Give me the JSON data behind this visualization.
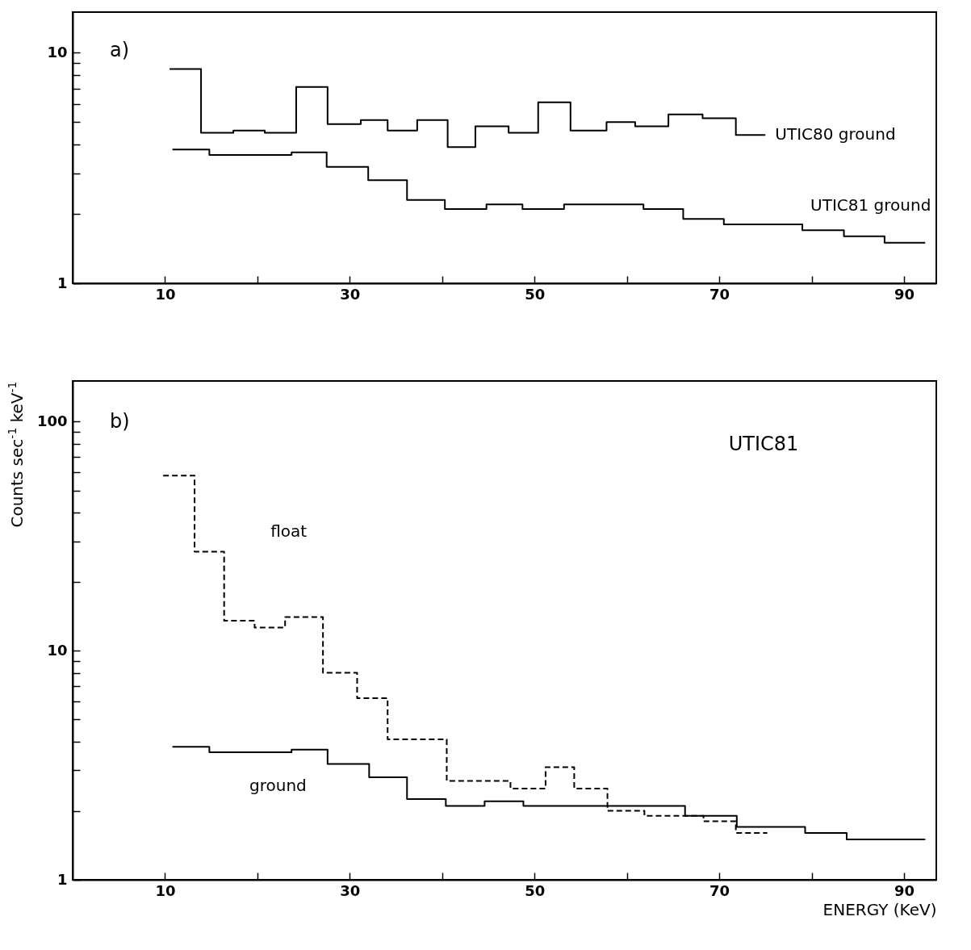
{
  "chart_data": [
    {
      "type": "step",
      "annotations": [
        "a)"
      ],
      "xlim": [
        0,
        93.5
      ],
      "ylim": [
        1,
        15
      ],
      "log": true,
      "xticks": [
        10,
        {
          "value": 20,
          "label": null
        },
        30,
        {
          "value": 40,
          "label": null
        },
        50,
        {
          "value": 60,
          "label": null
        },
        70,
        {
          "value": 80,
          "label": null
        },
        90
      ],
      "yticks": [
        1,
        {
          "value": 2,
          "label": null
        },
        {
          "value": 3,
          "label": null
        },
        {
          "value": 4,
          "label": null
        },
        {
          "value": 5,
          "label": null
        },
        {
          "value": 6,
          "label": null
        },
        {
          "value": 7,
          "label": null
        },
        {
          "value": 8,
          "label": null
        },
        {
          "value": 9,
          "label": null
        },
        10
      ],
      "series": [
        {
          "name": "UTIC80 ground",
          "color": "#000000",
          "line_style": "solid",
          "x": [
            10.5,
            13.9,
            17.4,
            20.8,
            24.2,
            27.6,
            31.2,
            34.1,
            37.3,
            40.6,
            43.6,
            47.2,
            50.4,
            53.9,
            57.8,
            60.9,
            64.5,
            68.2,
            71.8,
            75.0
          ],
          "values": [
            8.5,
            4.5,
            4.6,
            4.5,
            7.1,
            4.9,
            5.1,
            4.6,
            5.1,
            3.9,
            4.8,
            4.5,
            6.1,
            4.6,
            5.0,
            4.8,
            5.4,
            5.2,
            4.4,
            4.4
          ]
        },
        {
          "name": "UTIC81 ground",
          "color": "#000000",
          "line_style": "solid",
          "x": [
            10.8,
            14.8,
            23.7,
            27.5,
            32.0,
            36.2,
            40.3,
            44.8,
            48.7,
            53.2,
            61.8,
            66.1,
            70.5,
            79.0,
            83.5,
            87.9,
            92.3
          ],
          "values": [
            3.8,
            3.6,
            3.7,
            3.2,
            2.8,
            2.3,
            2.1,
            2.2,
            2.1,
            2.2,
            2.1,
            1.9,
            1.8,
            1.7,
            1.6,
            1.5,
            1.5
          ]
        }
      ]
    },
    {
      "type": "step",
      "xlabel": "ENERGY  (KeV)",
      "ylabel": "Counts  sec$^{-1}$ keV$^{-1}$",
      "annotations": [
        "b)",
        "UTIC81"
      ],
      "xlim": [
        0,
        93.5
      ],
      "ylim": [
        1,
        150
      ],
      "log": true,
      "xticks": [
        10,
        {
          "value": 20,
          "label": null
        },
        30,
        {
          "value": 40,
          "label": null
        },
        50,
        {
          "value": 60,
          "label": null
        },
        70,
        {
          "value": 80,
          "label": null
        },
        90
      ],
      "yticks": [
        1,
        {
          "value": 2,
          "label": null
        },
        {
          "value": 3,
          "label": null
        },
        {
          "value": 4,
          "label": null
        },
        {
          "value": 5,
          "label": null
        },
        {
          "value": 6,
          "label": null
        },
        {
          "value": 7,
          "label": null
        },
        {
          "value": 8,
          "label": null
        },
        {
          "value": 9,
          "label": null
        },
        10,
        {
          "value": 20,
          "label": null
        },
        {
          "value": 30,
          "label": null
        },
        {
          "value": 40,
          "label": null
        },
        {
          "value": 50,
          "label": null
        },
        {
          "value": 60,
          "label": null
        },
        {
          "value": 70,
          "label": null
        },
        {
          "value": 80,
          "label": null
        },
        {
          "value": 90,
          "label": null
        },
        100
      ],
      "series": [
        {
          "name": "float",
          "color": "#000000",
          "line_style": "dashed",
          "x": [
            9.8,
            13.2,
            16.4,
            19.7,
            23.0,
            27.1,
            30.8,
            34.1,
            40.5,
            44.1,
            47.4,
            51.2,
            54.3,
            57.9,
            61.9,
            66.2,
            68.3,
            70.6,
            71.8,
            75.2
          ],
          "values": [
            58,
            27,
            13.5,
            12.6,
            14,
            8.0,
            6.2,
            4.1,
            2.7,
            2.7,
            2.5,
            3.1,
            2.5,
            2.0,
            1.9,
            1.9,
            1.8,
            1.8,
            1.6,
            1.6
          ]
        },
        {
          "name": "ground",
          "color": "#000000",
          "line_style": "solid",
          "x": [
            10.8,
            14.8,
            23.7,
            27.6,
            32.1,
            36.2,
            40.4,
            44.6,
            48.8,
            53.2,
            61.9,
            66.3,
            71.9,
            79.3,
            83.8,
            88.0,
            92.3
          ],
          "values": [
            3.8,
            3.6,
            3.7,
            3.2,
            2.8,
            2.25,
            2.1,
            2.2,
            2.1,
            2.1,
            2.1,
            1.9,
            1.7,
            1.6,
            1.5,
            1.5,
            1.5
          ]
        }
      ]
    }
  ]
}
